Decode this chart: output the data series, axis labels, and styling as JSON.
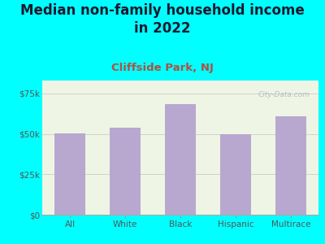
{
  "title": "Median non-family household income\nin 2022",
  "subtitle": "Cliffside Park, NJ",
  "categories": [
    "All",
    "White",
    "Black",
    "Hispanic",
    "Multirace"
  ],
  "values": [
    50500,
    54000,
    68500,
    50000,
    61000
  ],
  "bar_color": "#b8a8d0",
  "background_color": "#00FFFF",
  "plot_bg_color": "#eef5e4",
  "title_fontsize": 12,
  "subtitle_fontsize": 9.5,
  "title_color": "#1a1a2e",
  "subtitle_color": "#b05040",
  "tick_color": "#555555",
  "yticks": [
    0,
    25000,
    50000,
    75000
  ],
  "ytick_labels": [
    "$0",
    "$25k",
    "$50k",
    "$75k"
  ],
  "ylim": [
    0,
    83000
  ],
  "watermark": "City-Data.com",
  "grid_color": "#cccccc"
}
